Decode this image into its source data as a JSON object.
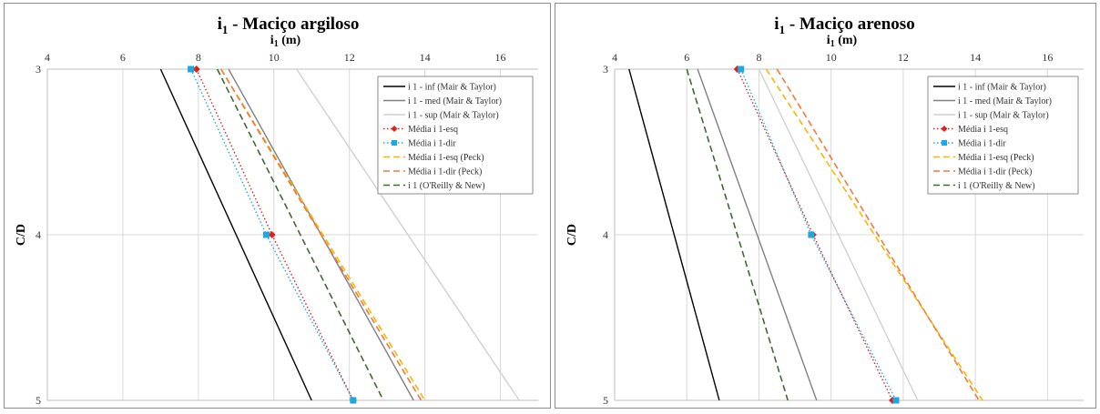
{
  "chart_data": [
    {
      "type": "line",
      "title": "i",
      "title_sub": "1",
      "title_rest": " - Maciço argiloso",
      "xlabel": "i",
      "xlabel_sub": "1",
      "xlabel_rest": " (m)",
      "ylabel": "C/D",
      "xlim": [
        4,
        17
      ],
      "ylim": [
        3,
        5
      ],
      "x_ticks": [
        "4",
        "6",
        "8",
        "10",
        "12",
        "14",
        "16"
      ],
      "y_ticks": [
        "3",
        "4",
        "5"
      ],
      "y_inverted": true,
      "x_axis_position": "top",
      "grid": true,
      "legend_position": "top-right",
      "series": [
        {
          "name": "i 1 - inf (Mair & Taylor)",
          "color": "#000000",
          "dash": "solid",
          "marker": "none",
          "points": [
            [
              7.0,
              3
            ],
            [
              11.0,
              5
            ]
          ]
        },
        {
          "name": "i 1 - med (Mair & Taylor)",
          "color": "#808080",
          "dash": "solid",
          "marker": "none",
          "points": [
            [
              8.8,
              3
            ],
            [
              13.7,
              5
            ]
          ]
        },
        {
          "name": "i 1 - sup (Mair & Taylor)",
          "color": "#d0d0d0",
          "dash": "solid",
          "marker": "none",
          "points": [
            [
              10.6,
              3
            ],
            [
              16.5,
              5
            ]
          ]
        },
        {
          "name": "Média i 1-esq",
          "color": "#e0201b",
          "dash": "dot",
          "marker": "diamond",
          "points": [
            [
              7.95,
              3
            ],
            [
              9.95,
              4
            ],
            [
              12.1,
              5
            ]
          ]
        },
        {
          "name": "Média i 1-dir",
          "color": "#1ea7e0",
          "dash": "dot",
          "marker": "square",
          "points": [
            [
              7.8,
              3
            ],
            [
              9.8,
              4
            ],
            [
              12.1,
              5
            ]
          ]
        },
        {
          "name": "Média i 1-esq (Peck)",
          "color": "#f5b800",
          "dash": "dash",
          "marker": "none",
          "points": [
            [
              8.6,
              3
            ],
            [
              14.0,
              5
            ]
          ]
        },
        {
          "name": "Média i 1-dir (Peck)",
          "color": "#f07a3a",
          "dash": "dash",
          "marker": "none",
          "points": [
            [
              8.6,
              3
            ],
            [
              13.9,
              5
            ]
          ]
        },
        {
          "name": "i 1 (O'Reilly & New)",
          "color": "#3f6a2e",
          "dash": "dash",
          "marker": "none",
          "points": [
            [
              8.5,
              3
            ],
            [
              12.9,
              5
            ]
          ]
        }
      ]
    },
    {
      "type": "line",
      "title": "i",
      "title_sub": "1",
      "title_rest": " - Maciço arenoso",
      "xlabel": "i",
      "xlabel_sub": "1",
      "xlabel_rest": " (m)",
      "ylabel": "C/D",
      "xlim": [
        4,
        17
      ],
      "ylim": [
        3,
        5
      ],
      "x_ticks": [
        "4",
        "6",
        "8",
        "10",
        "12",
        "14",
        "16"
      ],
      "y_ticks": [
        "3",
        "4",
        "5"
      ],
      "y_inverted": true,
      "x_axis_position": "top",
      "grid": true,
      "legend_position": "top-right",
      "series": [
        {
          "name": "i 1 - inf (Mair & Taylor)",
          "color": "#000000",
          "dash": "solid",
          "marker": "none",
          "points": [
            [
              4.4,
              3
            ],
            [
              6.9,
              5
            ]
          ]
        },
        {
          "name": "i 1 - med (Mair & Taylor)",
          "color": "#808080",
          "dash": "solid",
          "marker": "none",
          "points": [
            [
              6.3,
              3
            ],
            [
              9.6,
              5
            ]
          ]
        },
        {
          "name": "i 1 - sup (Mair & Taylor)",
          "color": "#d0d0d0",
          "dash": "solid",
          "marker": "none",
          "points": [
            [
              8.0,
              3
            ],
            [
              12.4,
              5
            ]
          ]
        },
        {
          "name": "Média i 1-esq",
          "color": "#e0201b",
          "dash": "dot",
          "marker": "diamond",
          "points": [
            [
              7.4,
              3
            ],
            [
              9.5,
              4
            ],
            [
              11.7,
              5
            ]
          ]
        },
        {
          "name": "Média i 1-dir",
          "color": "#1ea7e0",
          "dash": "dot",
          "marker": "square",
          "points": [
            [
              7.5,
              3
            ],
            [
              9.45,
              4
            ],
            [
              11.8,
              5
            ]
          ]
        },
        {
          "name": "Média i 1-esq (Peck)",
          "color": "#f5b800",
          "dash": "dash",
          "marker": "none",
          "points": [
            [
              8.2,
              3
            ],
            [
              14.2,
              5
            ]
          ]
        },
        {
          "name": "Média i 1-dir (Peck)",
          "color": "#f07a3a",
          "dash": "dash",
          "marker": "none",
          "points": [
            [
              8.5,
              3
            ],
            [
              14.1,
              5
            ]
          ]
        },
        {
          "name": "i 1 (O'Reilly & New)",
          "color": "#3f6a2e",
          "dash": "dash",
          "marker": "none",
          "points": [
            [
              6.0,
              3
            ],
            [
              8.8,
              5
            ]
          ]
        }
      ]
    }
  ]
}
